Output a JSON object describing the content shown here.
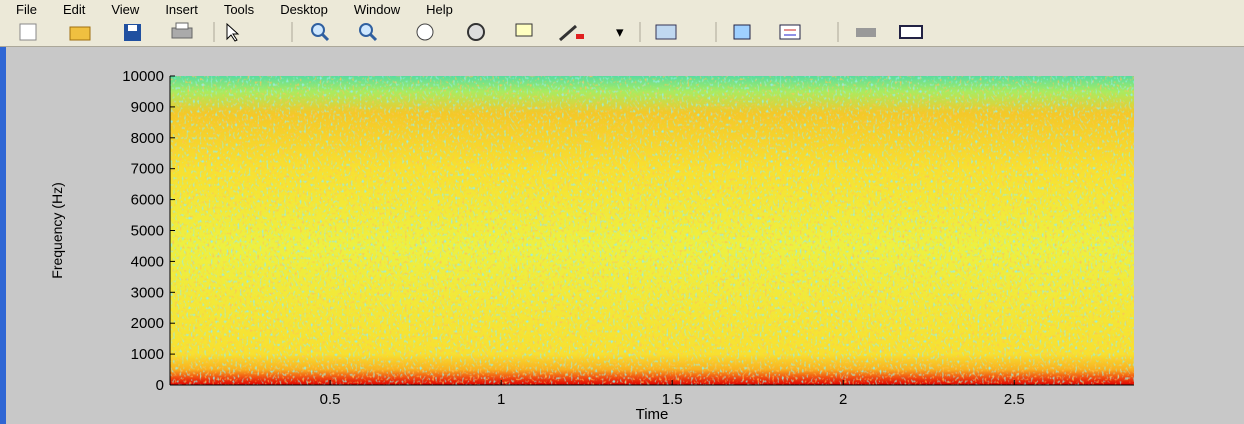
{
  "menu": [
    "File",
    "Edit",
    "View",
    "Insert",
    "Tools",
    "Desktop",
    "Window",
    "Help"
  ],
  "chart_data": {
    "type": "spectrogram",
    "xlabel": "Time",
    "ylabel": "Frequency (Hz)",
    "xlim": [
      0.032,
      2.85
    ],
    "ylim": [
      0,
      10000
    ],
    "xticks": [
      0.5,
      1,
      1.5,
      2,
      2.5
    ],
    "yticks": [
      0,
      1000,
      2000,
      3000,
      4000,
      5000,
      6000,
      7000,
      8000,
      9000,
      10000
    ]
  }
}
